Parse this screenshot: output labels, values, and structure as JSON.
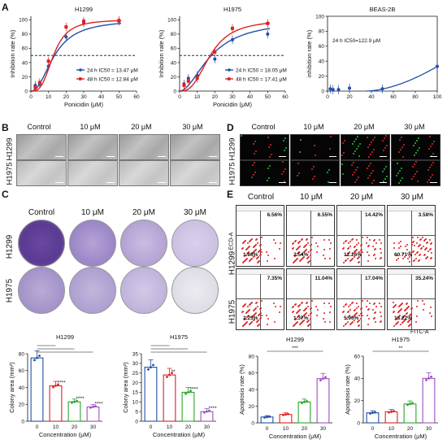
{
  "panels": {
    "A": "A",
    "B": "B",
    "C": "C",
    "D": "D",
    "E": "E"
  },
  "A": {
    "h1299": {
      "title": "H1299",
      "xlabel": "Ponicidin (μM)",
      "ylabel": "Inhibition rate (%)",
      "xticks": [
        "0",
        "10",
        "20",
        "30",
        "40",
        "50",
        "60"
      ],
      "yticks": [
        "0",
        "20",
        "40",
        "60",
        "80",
        "100"
      ],
      "legend": [
        "24 h IC50 = 13.47 μM",
        "48 h IC50 = 12.84 μM"
      ]
    },
    "h1975": {
      "title": "H1975",
      "xlabel": "Ponicidin (μM)",
      "ylabel": "Inhibition rate (%)",
      "xticks": [
        "0",
        "10",
        "20",
        "30",
        "40",
        "50",
        "60"
      ],
      "yticks": [
        "0",
        "20",
        "40",
        "60",
        "80",
        "100"
      ],
      "legend": [
        "24 h IC50 = 18.05 μM",
        "48 h IC50 = 17.41 μM"
      ]
    },
    "beas": {
      "title": "BEAS-2B",
      "ylabel": "inhibition rate (%)",
      "xticks": [
        "0",
        "20",
        "40",
        "60",
        "80",
        "100"
      ],
      "yticks": [
        "0",
        "20",
        "40",
        "60",
        "80",
        "100"
      ],
      "annot": "24 h IC50=122.9 μM"
    },
    "colors": {
      "h24": "#1f4fa8",
      "h48": "#e02020"
    }
  },
  "B": {
    "cols": [
      "Control",
      "10 μM",
      "20 μM",
      "30 μM"
    ],
    "rows": [
      "H1299",
      "H1975"
    ]
  },
  "C": {
    "cols": [
      "Control",
      "10 μM",
      "20 μM",
      "30 μM"
    ],
    "rows": [
      "H1299",
      "H1975"
    ],
    "bars": [
      {
        "title": "H1299",
        "ylabel": "Colony area (mm²)",
        "xlabel": "Concentration (μM)",
        "categories": [
          "0",
          "10",
          "20",
          "30"
        ],
        "values": [
          75,
          42,
          23,
          17
        ],
        "yticks": [
          "0",
          "20",
          "40",
          "60",
          "80"
        ],
        "sig": [
          "****",
          "****",
          "****"
        ]
      },
      {
        "title": "H1975",
        "ylabel": "Colony area (mm²)",
        "xlabel": "Concentration (μM)",
        "categories": [
          "0",
          "10",
          "20",
          "30"
        ],
        "values": [
          28,
          24,
          15,
          5
        ],
        "yticks": [
          "0",
          "5",
          "10",
          "15",
          "20",
          "25",
          "30",
          "35"
        ],
        "sig": [
          "**",
          "****",
          "****"
        ]
      }
    ],
    "colors": [
      "#1f4fa8",
      "#e02020",
      "#2aa52a",
      "#9a4fc0"
    ]
  },
  "D": {
    "cols": [
      "Control",
      "10 μM",
      "20 μM",
      "30 μM"
    ],
    "rows": [
      "H1299",
      "H1975"
    ]
  },
  "E": {
    "cols": [
      "Control",
      "10 μM",
      "20 μM",
      "30 μM"
    ],
    "rows": [
      "H1299",
      "H1975"
    ],
    "yaxis": "ECD-A",
    "xaxis": "FITC-A",
    "quadrants": [
      [
        [
          "6.56%",
          "1.86%"
        ],
        [
          "6.55%",
          "2.54%"
        ],
        [
          "14.42%",
          "12.26%"
        ],
        [
          "3.58%",
          "60.71%"
        ]
      ],
      [
        [
          "7.35%",
          "2.25%"
        ],
        [
          "11.04%",
          "1.37%"
        ],
        [
          "17.04%",
          "5.90%"
        ],
        [
          "35.24%",
          "13.22%"
        ]
      ]
    ],
    "bars": [
      {
        "title": "H1299",
        "ylabel": "Apoptosis rate (%)",
        "xlabel": "Concentration (μM)",
        "categories": [
          "0",
          "10",
          "20",
          "30"
        ],
        "values": [
          7,
          10,
          25,
          53
        ],
        "yticks": [
          "0",
          "20",
          "40",
          "60",
          "80"
        ],
        "sig": "***"
      },
      {
        "title": "H1975",
        "ylabel": "Apoptosis rate (%)",
        "xlabel": "Concentration (μM)",
        "categories": [
          "0",
          "10",
          "20",
          "30"
        ],
        "values": [
          9,
          10,
          17,
          40
        ],
        "yticks": [
          "0",
          "20",
          "40",
          "60"
        ],
        "sig": "**"
      }
    ]
  },
  "chart_data": [
    {
      "type": "line",
      "title": "H1299",
      "xlabel": "Ponicidin (μM)",
      "ylabel": "Inhibition rate (%)",
      "xlim": [
        0,
        60
      ],
      "ylim": [
        0,
        105
      ],
      "series": [
        {
          "name": "24 h",
          "x": [
            2.5,
            5,
            10,
            20,
            30,
            50
          ],
          "y": [
            8,
            10,
            35,
            76,
            96,
            98
          ]
        },
        {
          "name": "48 h",
          "x": [
            2.5,
            5,
            10,
            20,
            30,
            50
          ],
          "y": [
            5,
            12,
            42,
            90,
            98,
            99
          ]
        }
      ]
    },
    {
      "type": "line",
      "title": "H1975",
      "xlabel": "Ponicidin (μM)",
      "ylabel": "Inhibition rate (%)",
      "xlim": [
        0,
        60
      ],
      "ylim": [
        0,
        105
      ],
      "series": [
        {
          "name": "24 h",
          "x": [
            2.5,
            5,
            10,
            20,
            30,
            50
          ],
          "y": [
            10,
            18,
            22,
            45,
            72,
            80
          ]
        },
        {
          "name": "48 h",
          "x": [
            2.5,
            5,
            10,
            20,
            30,
            50
          ],
          "y": [
            8,
            14,
            18,
            55,
            88,
            95
          ]
        }
      ]
    },
    {
      "type": "scatter",
      "title": "BEAS-2B",
      "ylabel": "inhibition rate (%)",
      "xlim": [
        0,
        100
      ],
      "ylim": [
        0,
        100
      ],
      "series": [
        {
          "name": "24 h",
          "x": [
            2.5,
            5,
            10,
            20,
            50,
            100
          ],
          "y": [
            3,
            2,
            2,
            4,
            3,
            33
          ]
        }
      ]
    },
    {
      "type": "bar",
      "title": "H1299",
      "categories": [
        "0",
        "10",
        "20",
        "30"
      ],
      "values": [
        75,
        42,
        23,
        17
      ],
      "ylabel": "Colony area (mm²)",
      "xlabel": "Concentration (μM)",
      "ylim": [
        0,
        80
      ]
    },
    {
      "type": "bar",
      "title": "H1975",
      "categories": [
        "0",
        "10",
        "20",
        "30"
      ],
      "values": [
        28,
        24,
        15,
        5
      ],
      "ylabel": "Colony area (mm²)",
      "xlabel": "Concentration (μM)",
      "ylim": [
        0,
        35
      ]
    },
    {
      "type": "bar",
      "title": "H1299",
      "categories": [
        "0",
        "10",
        "20",
        "30"
      ],
      "values": [
        7,
        10,
        25,
        53
      ],
      "ylabel": "Apoptosis rate (%)",
      "xlabel": "Concentration (μM)",
      "ylim": [
        0,
        80
      ]
    },
    {
      "type": "bar",
      "title": "H1975",
      "categories": [
        "0",
        "10",
        "20",
        "30"
      ],
      "values": [
        9,
        10,
        17,
        40
      ],
      "ylabel": "Apoptosis rate (%)",
      "xlabel": "Concentration (μM)",
      "ylim": [
        0,
        60
      ]
    }
  ]
}
